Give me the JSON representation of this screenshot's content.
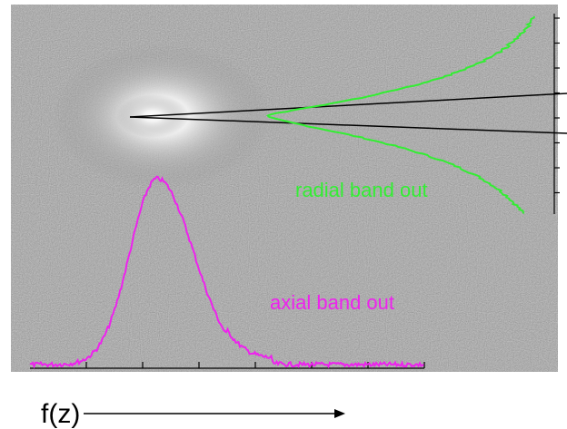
{
  "labels": {
    "radial": "radial band out",
    "axial": "axial band out",
    "axis": "f(z)"
  }
}
